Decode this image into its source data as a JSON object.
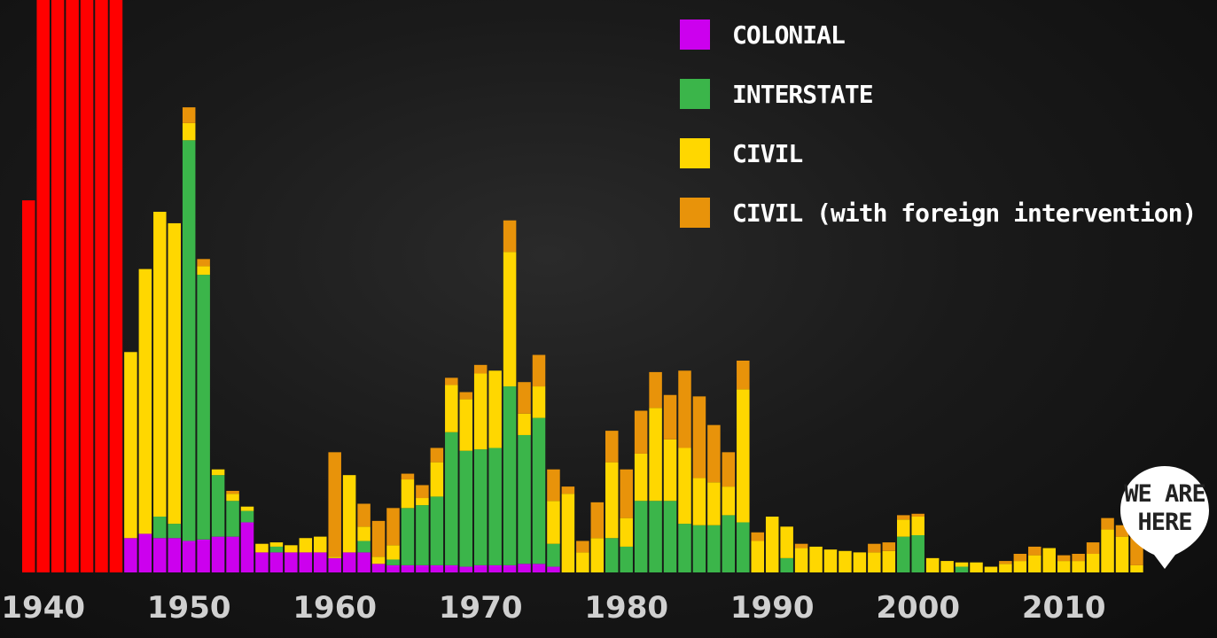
{
  "chart_data": {
    "type": "bar",
    "stacked": true,
    "x_start": 1939,
    "x_tick_labels": [
      "1940",
      "1950",
      "1960",
      "1970",
      "1980",
      "1990",
      "2000",
      "2010"
    ],
    "x_ticks": [
      1940,
      1950,
      1960,
      1970,
      1980,
      1990,
      2000,
      2010
    ],
    "ylim": [
      0,
      40
    ],
    "grid": false,
    "legend_position": "top-right",
    "world_war_years": [
      1939,
      1940,
      1941,
      1942,
      1943,
      1944,
      1945
    ],
    "world_war_values": [
      26.0,
      40,
      40,
      40,
      40,
      40,
      40
    ],
    "world_war_color": "#ff0000",
    "series": [
      {
        "name": "COLONIAL",
        "color": "#cc00ee",
        "values": [
          0,
          0,
          0,
          0,
          0,
          0,
          0,
          2.4,
          2.7,
          2.4,
          2.4,
          2.2,
          2.3,
          2.5,
          2.5,
          3.5,
          1.4,
          1.4,
          1.4,
          1.4,
          1.4,
          1.0,
          1.4,
          1.4,
          0.6,
          0.5,
          0.5,
          0.5,
          0.5,
          0.5,
          0.4,
          0.5,
          0.5,
          0.5,
          0.6,
          0.6,
          0.4,
          0,
          0,
          0,
          0,
          0,
          0,
          0,
          0,
          0,
          0,
          0,
          0,
          0,
          0,
          0,
          0,
          0,
          0,
          0,
          0,
          0,
          0,
          0,
          0,
          0,
          0,
          0,
          0,
          0,
          0,
          0,
          0,
          0,
          0,
          0,
          0,
          0,
          0,
          0,
          0,
          0,
          0
        ]
      },
      {
        "name": "INTERSTATE",
        "color": "#3bb54a",
        "values": [
          0,
          0,
          0,
          0,
          0,
          0,
          0,
          0,
          0,
          1.5,
          1.0,
          28.0,
          18.5,
          4.3,
          2.5,
          0.8,
          0,
          0.4,
          0,
          0,
          0,
          0,
          0,
          0.8,
          0,
          0.4,
          4.0,
          4.2,
          4.8,
          9.3,
          8.1,
          8.1,
          8.2,
          12.5,
          9.0,
          10.2,
          1.6,
          0,
          0,
          0,
          2.4,
          1.8,
          5.0,
          5.0,
          5.0,
          3.4,
          3.3,
          3.3,
          4.0,
          3.5,
          0,
          0,
          1.0,
          0,
          0,
          0,
          0,
          0,
          0,
          0,
          2.5,
          2.6,
          0,
          0,
          0.4,
          0,
          0,
          0,
          0,
          0,
          0,
          0,
          0,
          0,
          0,
          0,
          0
        ]
      },
      {
        "name": "CIVIL",
        "color": "#ffd700",
        "values": [
          0,
          0,
          0,
          0,
          0,
          0,
          0,
          13.0,
          18.5,
          21.3,
          21.0,
          1.2,
          0.6,
          0.4,
          0.5,
          0.3,
          0.6,
          0.3,
          0.5,
          1.0,
          1.1,
          0.1,
          5.4,
          1.0,
          0.5,
          1.0,
          2.0,
          0.5,
          2.4,
          3.3,
          3.6,
          5.3,
          5.4,
          9.4,
          1.5,
          2.2,
          3.0,
          5.5,
          1.4,
          2.4,
          5.3,
          2.0,
          3.3,
          6.5,
          4.3,
          5.3,
          3.3,
          3.0,
          2.0,
          9.3,
          2.2,
          3.9,
          2.2,
          1.7,
          1.8,
          1.6,
          1.5,
          1.4,
          1.4,
          1.5,
          1.2,
          1.3,
          1.0,
          0.8,
          0.3,
          0.7,
          0.4,
          0.6,
          0.8,
          1.2,
          1.7,
          0.8,
          0.8,
          1.3,
          3.0,
          2.5,
          0.5
        ]
      },
      {
        "name": "CIVIL (with foreign intervention)",
        "color": "#e8930a",
        "values": [
          0,
          0,
          0,
          0,
          0,
          0,
          0,
          0,
          0,
          0,
          0,
          1.1,
          0.5,
          0,
          0.2,
          0,
          0,
          0,
          0,
          0,
          0,
          7.3,
          0,
          1.6,
          2.5,
          2.6,
          0.4,
          0.9,
          1.0,
          0.5,
          0.5,
          0.6,
          0,
          2.2,
          2.2,
          2.2,
          2.2,
          0.5,
          0.8,
          2.5,
          2.2,
          3.4,
          3.0,
          2.5,
          3.1,
          5.4,
          5.7,
          4.0,
          2.4,
          2.0,
          0.6,
          0,
          0,
          0.3,
          0,
          0,
          0,
          0,
          0.6,
          0.6,
          0.3,
          0.2,
          0,
          0,
          0,
          0,
          0,
          0.2,
          0.5,
          0.6,
          0,
          0.4,
          0.5,
          0.8,
          0.8,
          0.8,
          2.6
        ]
      }
    ]
  },
  "legend": {
    "items": [
      {
        "label": "COLONIAL",
        "color": "#cc00ee"
      },
      {
        "label": "INTERSTATE",
        "color": "#3bb54a"
      },
      {
        "label": "CIVIL",
        "color": "#ffd700"
      },
      {
        "label": "CIVIL (with foreign intervention)",
        "color": "#e8930a"
      }
    ]
  },
  "marker": {
    "line1": "WE ARE",
    "line2": "HERE"
  }
}
